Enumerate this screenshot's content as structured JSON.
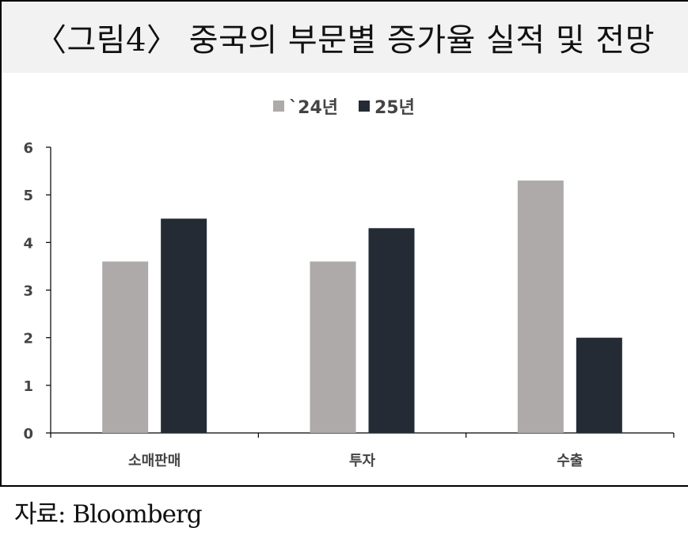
{
  "title": "〈그림4〉 중국의 부문별 증가율 실적 및 전망",
  "source": "자료: Bloomberg",
  "chart_data": {
    "type": "bar",
    "title": "〈그림4〉 중국의 부문별 증가율 실적 및 전망",
    "categories": [
      "소매판매",
      "투자",
      "수출"
    ],
    "series": [
      {
        "name": "`24년",
        "values": [
          3.6,
          3.6,
          5.3
        ],
        "color": "#aeaaaa"
      },
      {
        "name": "25년",
        "values": [
          4.5,
          4.3,
          2.0
        ],
        "color": "#252b34"
      }
    ],
    "yticks": [
      "0",
      "1",
      "2",
      "3",
      "4",
      "5",
      "6"
    ],
    "ylim": [
      0,
      6
    ],
    "grid": false,
    "legend": "top-center",
    "xlabel": "",
    "ylabel": ""
  }
}
